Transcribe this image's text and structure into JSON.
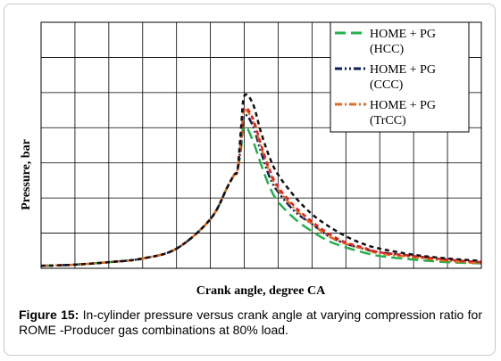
{
  "chart_data": {
    "type": "line",
    "title": "",
    "xlabel": "Crank angle, degree CA",
    "ylabel": "Pressure,  bar",
    "xlim": [
      -100,
      160
    ],
    "ylim": [
      0,
      100
    ],
    "grid": true,
    "legend_position": "top-right",
    "series": [
      {
        "name": "HOME + PG (HCC)",
        "color": "#22b04b",
        "style": "long-dash",
        "x": [
          -100,
          -80,
          -60,
          -40,
          -20,
          0,
          10,
          14,
          16,
          18,
          20,
          25,
          30,
          35,
          40,
          50,
          60,
          70,
          80,
          90,
          100,
          120,
          140,
          160
        ],
        "y": [
          1,
          1.5,
          2.5,
          4,
          8,
          20,
          33,
          38,
          40,
          48,
          58,
          52,
          42,
          33,
          27,
          20,
          15,
          11,
          8.5,
          6.5,
          5,
          3.5,
          2.5,
          2
        ]
      },
      {
        "name": "HOME + PG (CCC)",
        "color": "#0a1e5a",
        "style": "dash-dot-dot",
        "x": [
          -100,
          -80,
          -60,
          -40,
          -20,
          0,
          10,
          14,
          16,
          18,
          20,
          25,
          30,
          35,
          40,
          50,
          60,
          70,
          80,
          90,
          100,
          120,
          140,
          160
        ],
        "y": [
          1,
          1.5,
          2.5,
          4,
          8,
          20,
          33,
          38,
          40,
          50,
          62,
          58,
          47,
          37,
          31,
          23,
          18,
          13,
          10,
          8,
          6.5,
          5,
          3.5,
          2.5
        ]
      },
      {
        "name": "HOME + PG (TrCC)",
        "color": "#e46c1e",
        "style": "dash-dot",
        "x": [
          -100,
          -80,
          -60,
          -40,
          -20,
          0,
          10,
          14,
          16,
          18,
          20,
          25,
          30,
          35,
          40,
          50,
          60,
          70,
          80,
          90,
          100,
          120,
          140,
          160
        ],
        "y": [
          1,
          1.5,
          2.5,
          4,
          8,
          20,
          33,
          38,
          40,
          52,
          64,
          60,
          49,
          39,
          32,
          24,
          18,
          13,
          10,
          8,
          6,
          4.5,
          3,
          2
        ]
      },
      {
        "name": "",
        "color": "#e02020",
        "style": "short-dash",
        "x": [
          -100,
          -80,
          -60,
          -40,
          -20,
          0,
          10,
          14,
          16,
          18,
          20,
          25,
          30,
          35,
          40,
          50,
          60,
          70,
          80,
          90,
          100,
          120,
          140,
          160
        ],
        "y": [
          1,
          1.5,
          2.5,
          4,
          8,
          20,
          33,
          38,
          40,
          53,
          65,
          61,
          50,
          40,
          33,
          25,
          19,
          14,
          10.5,
          8.5,
          6.5,
          5,
          3.5,
          2.5
        ]
      },
      {
        "name": "",
        "color": "#111111",
        "style": "short-dash",
        "x": [
          -100,
          -80,
          -60,
          -40,
          -20,
          0,
          10,
          14,
          16,
          18,
          20,
          25,
          30,
          35,
          40,
          50,
          60,
          70,
          80,
          90,
          100,
          120,
          140,
          160
        ],
        "y": [
          1,
          1.5,
          2.5,
          4,
          8,
          20,
          33,
          38,
          40,
          56,
          70,
          67,
          55,
          45,
          38,
          29,
          22,
          17,
          13,
          10,
          8,
          5.5,
          4,
          3
        ]
      }
    ],
    "legend": [
      {
        "lines": [
          "HOME + PG",
          "(HCC)"
        ],
        "color": "#22b04b",
        "style": "long-dash"
      },
      {
        "lines": [
          "HOME + PG",
          "(CCC)"
        ],
        "color": "#0a1e5a",
        "style": "dash-dot-dot"
      },
      {
        "lines": [
          "HOME + PG",
          "(TrCC)"
        ],
        "color": "#e46c1e",
        "style": "dash-dot"
      }
    ]
  },
  "caption": {
    "label": "Figure 15:",
    "text": " In-cylinder pressure versus crank angle at varying compression ratio for ROME -Producer gas combinations at 80% load."
  }
}
